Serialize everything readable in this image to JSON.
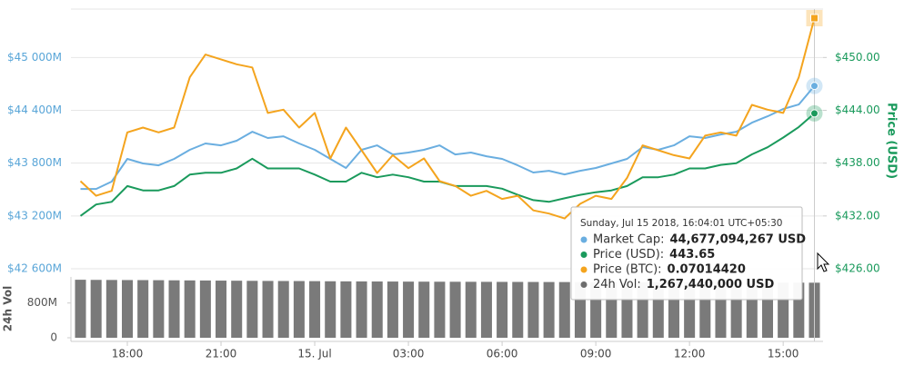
{
  "chart_data": [
    {
      "type": "line",
      "ylim": [
        42600,
        45550
      ],
      "yticks": [
        {
          "value": 42600,
          "label": "$42 600M"
        },
        {
          "value": 43200,
          "label": "$43 200M"
        },
        {
          "value": 43800,
          "label": "$43 800M"
        },
        {
          "value": 44400,
          "label": "$44 400M"
        },
        {
          "value": 45000,
          "label": "$45 000M"
        }
      ],
      "y2lim": [
        426,
        455.5
      ],
      "y2ticks": [
        {
          "value": 426,
          "label": "$426.00"
        },
        {
          "value": 432,
          "label": "$432.00"
        },
        {
          "value": 438,
          "label": "$438.00"
        },
        {
          "value": 444,
          "label": "$444.00"
        },
        {
          "value": 450,
          "label": "$450.00"
        }
      ],
      "y2label": "Price (USD)",
      "y3lim": [
        0.0686,
        0.0702
      ],
      "grid": true,
      "series": [
        {
          "color": "#6aaee0",
          "axis": "y",
          "values": [
            43507,
            43507,
            43590,
            43848,
            43796,
            43775,
            43848,
            43951,
            44023,
            44002,
            44054,
            44157,
            44085,
            44105,
            44023,
            43951,
            43848,
            43745,
            43951,
            44002,
            43899,
            43920,
            43951,
            44002,
            43899,
            43920,
            43878,
            43848,
            43775,
            43693,
            43713,
            43672,
            43713,
            43745,
            43796,
            43848,
            43982,
            43951,
            44002,
            44105,
            44085,
            44126,
            44157,
            44260,
            44332,
            44415,
            44466,
            44677.094267
          ]
        },
        {
          "color": "#1a9a5c",
          "axis": "y2",
          "values": [
            432.0,
            433.3,
            433.6,
            435.4,
            434.9,
            434.9,
            435.4,
            436.7,
            436.9,
            436.9,
            437.4,
            438.5,
            437.4,
            437.4,
            437.4,
            436.7,
            435.9,
            435.9,
            436.9,
            436.4,
            436.7,
            436.4,
            435.9,
            435.9,
            435.4,
            435.4,
            435.4,
            435.1,
            434.4,
            433.8,
            433.6,
            434.0,
            434.4,
            434.7,
            434.9,
            435.4,
            436.4,
            436.4,
            436.7,
            437.4,
            437.4,
            437.8,
            438.0,
            439.0,
            439.8,
            440.9,
            442.1,
            443.65
          ]
        },
        {
          "color": "#f4a41e",
          "axis": "y3",
          "values": [
            0.06914,
            0.06905,
            0.06908,
            0.06944,
            0.06947,
            0.06944,
            0.06947,
            0.06978,
            0.06992,
            0.06989,
            0.06986,
            0.06984,
            0.06956,
            0.06958,
            0.06947,
            0.06956,
            0.06928,
            0.06947,
            0.06933,
            0.06919,
            0.0693,
            0.06922,
            0.06928,
            0.06914,
            0.06911,
            0.06905,
            0.06908,
            0.06903,
            0.06905,
            0.06896,
            0.06894,
            0.06891,
            0.069,
            0.06905,
            0.06903,
            0.06916,
            0.06936,
            0.06933,
            0.0693,
            0.06928,
            0.06942,
            0.06944,
            0.06942,
            0.06961,
            0.06958,
            0.06956,
            0.06978,
            0.0701442
          ]
        }
      ]
    },
    {
      "type": "bar",
      "ylabel": "24h Vol",
      "color": "#7a7a7a",
      "x": [
        "16:30",
        "17:00",
        "17:30",
        "18:00",
        "18:30",
        "19:00",
        "19:30",
        "20:00",
        "20:30",
        "21:00",
        "21:30",
        "22:00",
        "22:30",
        "23:00",
        "23:30",
        "00:00",
        "00:30",
        "01:00",
        "01:30",
        "02:00",
        "02:30",
        "03:00",
        "03:30",
        "04:00",
        "04:30",
        "05:00",
        "05:30",
        "06:00",
        "06:30",
        "07:00",
        "07:30",
        "08:00",
        "08:30",
        "09:00",
        "09:30",
        "10:00",
        "10:30",
        "11:00",
        "11:30",
        "12:00",
        "12:30",
        "13:00",
        "13:30",
        "14:00",
        "14:30",
        "15:00",
        "15:30",
        "16:04"
      ],
      "xticks": [
        "18:00",
        "21:00",
        {
          "value": "00:00",
          "label": "15. Jul"
        },
        "03:00",
        "06:00",
        "09:00",
        "12:00",
        "15:00"
      ],
      "ylim": [
        0,
        1400000000
      ],
      "yticks": [
        0,
        {
          "value": 800000000,
          "label": "800M"
        }
      ],
      "values": [
        1335000000,
        1332000000,
        1330000000,
        1328000000,
        1327000000,
        1325000000,
        1322000000,
        1320000000,
        1318000000,
        1315000000,
        1313000000,
        1310000000,
        1308000000,
        1306000000,
        1305000000,
        1303000000,
        1300000000,
        1298000000,
        1297000000,
        1295000000,
        1294000000,
        1292000000,
        1291000000,
        1290000000,
        1289000000,
        1288000000,
        1287000000,
        1286000000,
        1285000000,
        1284000000,
        1283000000,
        1282000000,
        1281000000,
        1280000000,
        1279000000,
        1278000000,
        1277000000,
        1276000000,
        1275000000,
        1274000000,
        1273000000,
        1272000000,
        1271000000,
        1270000000,
        1269000000,
        1268000000,
        1268000000,
        1267440000
      ]
    }
  ],
  "tooltip": {
    "header": "Sunday, Jul 15 2018, 16:04:01 UTC+05:30",
    "rows": [
      {
        "label": "Market Cap:",
        "value": "44,677,094,267 USD",
        "color": "#6aaee0"
      },
      {
        "label": "Price (USD):",
        "value": "443.65",
        "color": "#1a9a5c"
      },
      {
        "label": "Price (BTC):",
        "value": "0.07014420",
        "color": "#f4a41e"
      },
      {
        "label": "24h Vol:",
        "value": "1,267,440,000 USD",
        "color": "#6e6e6e"
      }
    ]
  }
}
